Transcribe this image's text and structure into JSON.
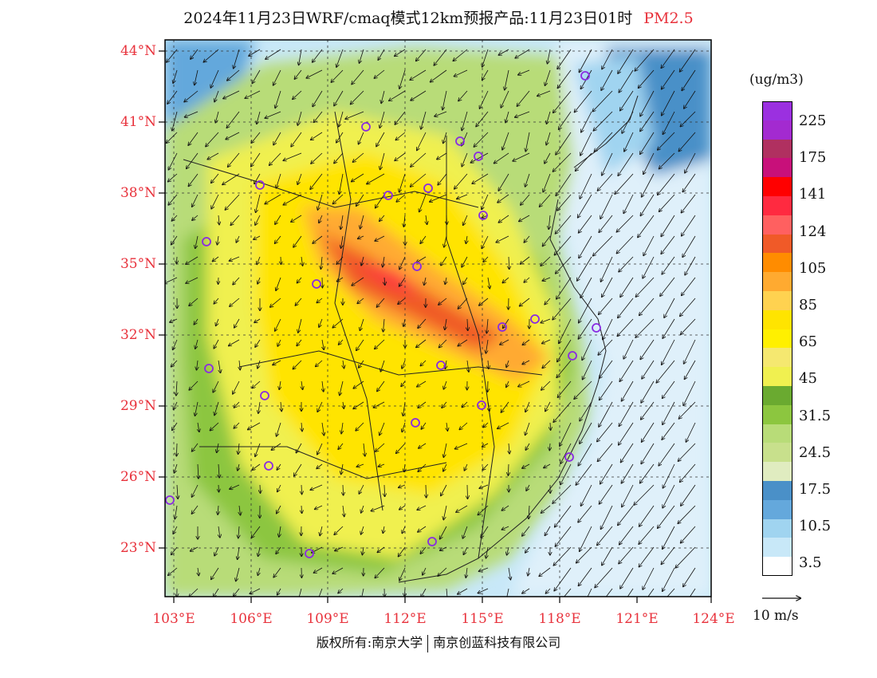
{
  "title": {
    "main": "2024年11月23日WRF/cmaq模式12km预报产品:11月23日01时",
    "species": "PM2.5"
  },
  "lat_labels": [
    "44°N",
    "41°N",
    "38°N",
    "35°N",
    "32°N",
    "29°N",
    "26°N",
    "23°N"
  ],
  "lon_labels": [
    "103°E",
    "106°E",
    "109°E",
    "112°E",
    "115°E",
    "118°E",
    "121°E",
    "124°E"
  ],
  "colorbar": {
    "unit": "(ug/m3)",
    "labels": [
      "225",
      "175",
      "141",
      "124",
      "105",
      "85",
      "65",
      "45",
      "31.5",
      "24.5",
      "17.5",
      "10.5",
      "3.5"
    ],
    "colors": [
      "#9b30e0",
      "#a32ad0",
      "#b03060",
      "#c8107a",
      "#ff0000",
      "#ff2a40",
      "#ff6060",
      "#f05a28",
      "#ff8c00",
      "#ffaa30",
      "#ffd250",
      "#ffe400",
      "#fff000",
      "#f5e870",
      "#f0f050",
      "#6aaa30",
      "#8cc63f",
      "#b8dc78",
      "#c8e08c",
      "#e0ecc0",
      "#4a90c8",
      "#64a8dc",
      "#a0d4f0",
      "#c8e8f8",
      "#ffffff"
    ]
  },
  "wind_reference": {
    "label": "10 m/s"
  },
  "footer": {
    "left": "版权所有:南京大学",
    "right": "南京创蓝科技有限公司"
  },
  "station_marker_color": "#8a2be2",
  "label_color": "#e8323c"
}
